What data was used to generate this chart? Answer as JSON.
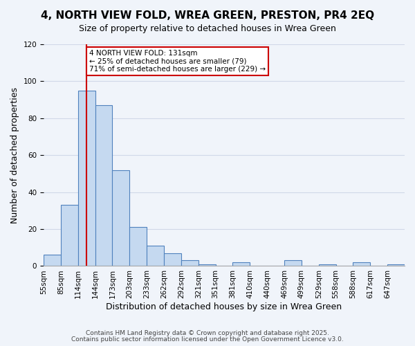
{
  "title": "4, NORTH VIEW FOLD, WREA GREEN, PRESTON, PR4 2EQ",
  "subtitle": "Size of property relative to detached houses in Wrea Green",
  "xlabel": "Distribution of detached houses by size in Wrea Green",
  "ylabel": "Number of detached properties",
  "bar_values": [
    6,
    33,
    95,
    87,
    52,
    21,
    11,
    7,
    3,
    1,
    0,
    2,
    0,
    0,
    3,
    0,
    1,
    0,
    2,
    0,
    1
  ],
  "bar_labels": [
    "55sqm",
    "85sqm",
    "114sqm",
    "144sqm",
    "173sqm",
    "203sqm",
    "233sqm",
    "262sqm",
    "292sqm",
    "321sqm",
    "351sqm",
    "381sqm",
    "410sqm",
    "440sqm",
    "469sqm",
    "499sqm",
    "529sqm",
    "558sqm",
    "588sqm",
    "617sqm",
    "647sqm"
  ],
  "bar_color": "#c5d9f0",
  "bar_edge_color": "#4f81bd",
  "annotation_title": "4 NORTH VIEW FOLD: 131sqm",
  "annotation_line1": "← 25% of detached houses are smaller (79)",
  "annotation_line2": "71% of semi-detached houses are larger (229) →",
  "annotation_box_color": "#ffffff",
  "annotation_box_edge": "#cc0000",
  "vline_x": 2.5,
  "vline_color": "#cc0000",
  "ylim": [
    0,
    120
  ],
  "yticks": [
    0,
    20,
    40,
    60,
    80,
    100,
    120
  ],
  "grid_color": "#d0d8e8",
  "background_color": "#f0f4fa",
  "footer1": "Contains HM Land Registry data © Crown copyright and database right 2025.",
  "footer2": "Contains public sector information licensed under the Open Government Licence v3.0.",
  "title_fontsize": 11,
  "subtitle_fontsize": 9,
  "xlabel_fontsize": 9,
  "ylabel_fontsize": 9,
  "tick_fontsize": 7.5
}
